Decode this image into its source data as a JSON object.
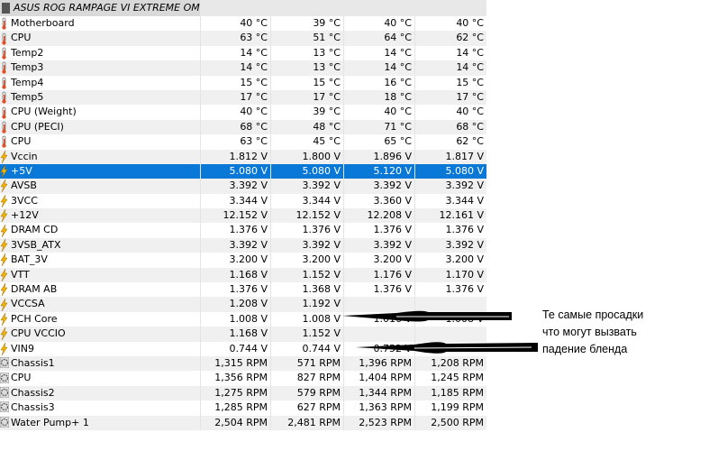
{
  "header": {
    "title": "ASUS ROG RAMPAGE VI EXTREME OME..."
  },
  "rows": [
    {
      "icon": "thermometer-icon",
      "label": "Motherboard",
      "v": [
        "40 °C",
        "39 °C",
        "40 °C",
        "40 °C"
      ]
    },
    {
      "icon": "thermometer-icon",
      "label": "CPU",
      "v": [
        "63 °C",
        "51 °C",
        "64 °C",
        "62 °C"
      ]
    },
    {
      "icon": "thermometer-icon",
      "label": "Temp2",
      "v": [
        "14 °C",
        "13 °C",
        "14 °C",
        "14 °C"
      ]
    },
    {
      "icon": "thermometer-icon",
      "label": "Temp3",
      "v": [
        "14 °C",
        "13 °C",
        "14 °C",
        "14 °C"
      ]
    },
    {
      "icon": "thermometer-icon",
      "label": "Temp4",
      "v": [
        "15 °C",
        "15 °C",
        "16 °C",
        "15 °C"
      ]
    },
    {
      "icon": "thermometer-icon",
      "label": "Temp5",
      "v": [
        "17 °C",
        "17 °C",
        "18 °C",
        "17 °C"
      ]
    },
    {
      "icon": "thermometer-icon",
      "label": "CPU (Weight)",
      "v": [
        "40 °C",
        "39 °C",
        "40 °C",
        "40 °C"
      ]
    },
    {
      "icon": "thermometer-icon",
      "label": "CPU (PECI)",
      "v": [
        "68 °C",
        "48 °C",
        "71 °C",
        "68 °C"
      ]
    },
    {
      "icon": "thermometer-icon",
      "label": "CPU",
      "v": [
        "63 °C",
        "45 °C",
        "65 °C",
        "62 °C"
      ]
    },
    {
      "icon": "voltage-icon",
      "label": "Vccin",
      "v": [
        "1.812 V",
        "1.800 V",
        "1.896 V",
        "1.817 V"
      ]
    },
    {
      "icon": "voltage-icon",
      "label": "+5V",
      "v": [
        "5.080 V",
        "5.080 V",
        "5.120 V",
        "5.080 V"
      ],
      "selected": true
    },
    {
      "icon": "voltage-icon",
      "label": "AVSB",
      "v": [
        "3.392 V",
        "3.392 V",
        "3.392 V",
        "3.392 V"
      ]
    },
    {
      "icon": "voltage-icon",
      "label": "3VCC",
      "v": [
        "3.344 V",
        "3.344 V",
        "3.360 V",
        "3.344 V"
      ]
    },
    {
      "icon": "voltage-icon",
      "label": "+12V",
      "v": [
        "12.152 V",
        "12.152 V",
        "12.208 V",
        "12.161 V"
      ]
    },
    {
      "icon": "voltage-icon",
      "label": "DRAM CD",
      "v": [
        "1.376 V",
        "1.376 V",
        "1.376 V",
        "1.376 V"
      ]
    },
    {
      "icon": "voltage-icon",
      "label": "3VSB_ATX",
      "v": [
        "3.392 V",
        "3.392 V",
        "3.392 V",
        "3.392 V"
      ]
    },
    {
      "icon": "voltage-icon",
      "label": "BAT_3V",
      "v": [
        "3.200 V",
        "3.200 V",
        "3.200 V",
        "3.200 V"
      ]
    },
    {
      "icon": "voltage-icon",
      "label": "VTT",
      "v": [
        "1.168 V",
        "1.152 V",
        "1.176 V",
        "1.170 V"
      ]
    },
    {
      "icon": "voltage-icon",
      "label": "DRAM AB",
      "v": [
        "1.376 V",
        "1.368 V",
        "1.376 V",
        "1.376 V"
      ]
    },
    {
      "icon": "voltage-icon",
      "label": "VCCSA",
      "v": [
        "1.208 V",
        "1.192 V",
        "",
        ""
      ]
    },
    {
      "icon": "voltage-icon",
      "label": "PCH Core",
      "v": [
        "1.008 V",
        "1.008 V",
        "1.016 V",
        "1.008 V"
      ]
    },
    {
      "icon": "voltage-icon",
      "label": "CPU VCCIO",
      "v": [
        "1.168 V",
        "1.152 V",
        "",
        ""
      ]
    },
    {
      "icon": "voltage-icon",
      "label": "VIN9",
      "v": [
        "0.744 V",
        "0.744 V",
        "0.752 V",
        "0.748 V"
      ]
    },
    {
      "icon": "fan-icon",
      "label": "Chassis1",
      "v": [
        "1,315 RPM",
        "571 RPM",
        "1,396 RPM",
        "1,208 RPM"
      ]
    },
    {
      "icon": "fan-icon",
      "label": "CPU",
      "v": [
        "1,356 RPM",
        "827 RPM",
        "1,404 RPM",
        "1,245 RPM"
      ]
    },
    {
      "icon": "fan-icon",
      "label": "Chassis2",
      "v": [
        "1,275 RPM",
        "579 RPM",
        "1,344 RPM",
        "1,185 RPM"
      ]
    },
    {
      "icon": "fan-icon",
      "label": "Chassis3",
      "v": [
        "1,285 RPM",
        "627 RPM",
        "1,363 RPM",
        "1,199 RPM"
      ]
    },
    {
      "icon": "fan-icon",
      "label": "Water Pump+ 1",
      "v": [
        "2,504 RPM",
        "2,481 RPM",
        "2,523 RPM",
        "2,500 RPM"
      ]
    }
  ],
  "annotation": {
    "lines": [
      "Те самые просадки",
      "что могут вызвать",
      "падение бленда"
    ]
  },
  "colors": {
    "selection": "#0a78d7"
  }
}
